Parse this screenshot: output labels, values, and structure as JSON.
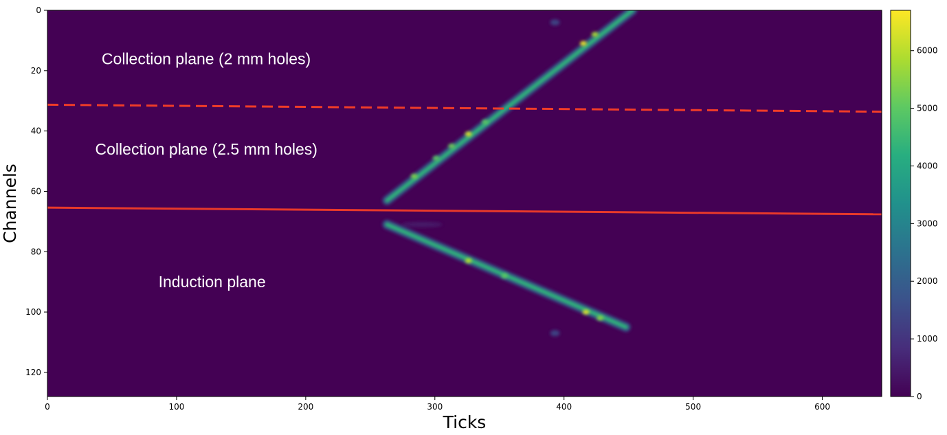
{
  "chart_data": {
    "type": "heatmap",
    "title": "",
    "xlabel": "Ticks",
    "ylabel": "Channels",
    "xlim": [
      0,
      646
    ],
    "ylim": [
      128,
      0
    ],
    "x_ticks": [
      0,
      100,
      200,
      300,
      400,
      500,
      600
    ],
    "y_ticks": [
      0,
      20,
      40,
      60,
      80,
      100,
      120
    ],
    "colormap": "viridis",
    "background_value": 0,
    "colorbar": {
      "min": 0,
      "max": 6700,
      "ticks": [
        0,
        1000,
        2000,
        3000,
        4000,
        5000,
        6000
      ]
    },
    "tracks": [
      {
        "name": "collection",
        "start": [
          263,
          63
        ],
        "end": [
          453,
          0
        ],
        "intensity": 4300
      },
      {
        "name": "induction",
        "start": [
          263,
          71
        ],
        "end": [
          448,
          105
        ],
        "intensity": 4300
      }
    ],
    "hotspots": [
      {
        "x": 415,
        "y": 11,
        "value": 6500
      },
      {
        "x": 424,
        "y": 8,
        "value": 5800
      },
      {
        "x": 326,
        "y": 41,
        "value": 6300
      },
      {
        "x": 313,
        "y": 45,
        "value": 5200
      },
      {
        "x": 301,
        "y": 49,
        "value": 5000
      },
      {
        "x": 284,
        "y": 55,
        "value": 5400
      },
      {
        "x": 339,
        "y": 37,
        "value": 5000
      },
      {
        "x": 326,
        "y": 83,
        "value": 6000
      },
      {
        "x": 354,
        "y": 88,
        "value": 5000
      },
      {
        "x": 417,
        "y": 100,
        "value": 6400
      },
      {
        "x": 428,
        "y": 102,
        "value": 5500
      }
    ],
    "blobs": [
      {
        "x": 393,
        "y": 4,
        "value": 1500
      },
      {
        "x": 393,
        "y": 107,
        "value": 1500
      },
      {
        "x": 290,
        "y": 71,
        "value": 500
      }
    ],
    "boundaries": [
      {
        "style": "dashed",
        "color": "#f03c28",
        "x": [
          0,
          646
        ],
        "y": [
          31.3,
          33.6
        ]
      },
      {
        "style": "solid",
        "color": "#e8392a",
        "x": [
          0,
          646
        ],
        "y": [
          65.4,
          67.6
        ]
      }
    ],
    "annotations": [
      {
        "text": "Collection plane (2 mm holes)",
        "x": 42,
        "y": 16
      },
      {
        "text": "Collection plane (2.5 mm holes)",
        "x": 37,
        "y": 46
      },
      {
        "text": "Induction plane",
        "x": 86,
        "y": 90
      }
    ]
  }
}
